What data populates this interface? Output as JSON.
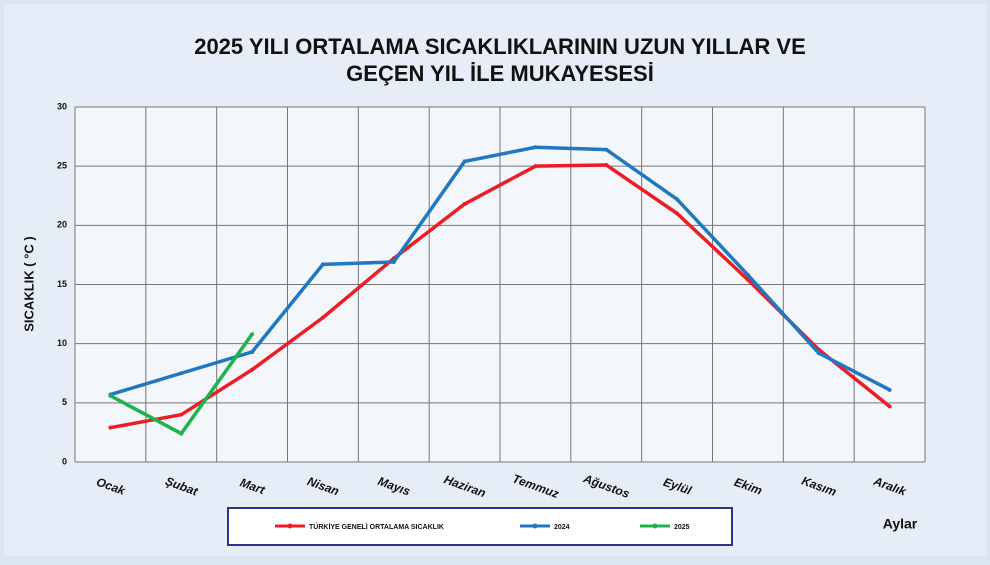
{
  "chart_data": {
    "type": "line",
    "title": "2025 YILI ORTALAMA SICAKLIKLARININ UZUN YILLAR VE",
    "subtitle": "GEÇEN  YIL İLE MUKAYESESİ",
    "ylabel": "SICAKLIK ( °C )",
    "xlabel": "Aylar",
    "categories": [
      "Ocak",
      "Şubat",
      "Mart",
      "Nisan",
      "Mayıs",
      "Haziran",
      "Temmuz",
      "Ağustos",
      "Eylül",
      "Ekim",
      "Kasım",
      "Aralık"
    ],
    "series": [
      {
        "name": "TÜRKİYE GENELİ ORTALAMA SICAKLIK",
        "color": "#ee1c25",
        "values": [
          2.9,
          4.0,
          7.8,
          12.2,
          17.2,
          21.8,
          25.0,
          25.1,
          21.0,
          15.4,
          9.5,
          4.7
        ]
      },
      {
        "name": "2024",
        "color": "#1f78c1",
        "values": [
          5.7,
          7.5,
          9.3,
          16.7,
          16.9,
          25.4,
          26.6,
          26.4,
          22.2,
          15.8,
          9.2,
          6.1
        ]
      },
      {
        "name": "2025",
        "color": "#1db34a",
        "values": [
          5.6,
          2.4,
          10.8,
          null,
          null,
          null,
          null,
          null,
          null,
          null,
          null,
          null
        ]
      }
    ],
    "ylim": [
      0,
      30
    ],
    "yticks": [
      0,
      5,
      10,
      15,
      20,
      25,
      30
    ],
    "grid": true
  }
}
